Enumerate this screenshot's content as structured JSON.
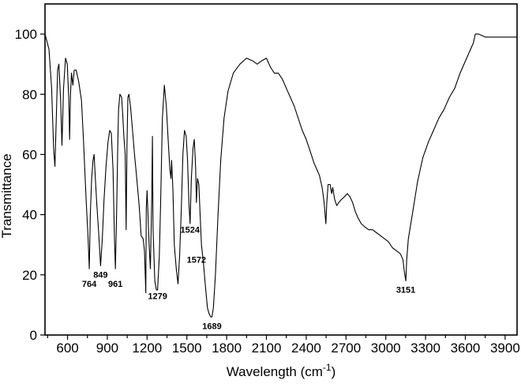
{
  "chart_data": {
    "type": "line",
    "xlabel": "Wavelength (cm",
    "xlabel_sup": "-1",
    "xlabel_end": ")",
    "ylabel": "Transmittance",
    "xlim": [
      430,
      3990
    ],
    "ylim": [
      0,
      110
    ],
    "xticks": [
      600,
      900,
      1200,
      1500,
      1800,
      2100,
      2400,
      2700,
      3000,
      3300,
      3600,
      3900
    ],
    "yticks": [
      0,
      20,
      40,
      60,
      80,
      100
    ],
    "grid": false,
    "legend": "none",
    "peak_labels": [
      {
        "text": "764",
        "x": 764,
        "y": 16
      },
      {
        "text": "849",
        "x": 849,
        "y": 19
      },
      {
        "text": "961",
        "x": 961,
        "y": 16
      },
      {
        "text": "1279",
        "x": 1279,
        "y": 12
      },
      {
        "text": "1524",
        "x": 1524,
        "y": 34
      },
      {
        "text": "1572",
        "x": 1572,
        "y": 24
      },
      {
        "text": "1689",
        "x": 1689,
        "y": 2
      },
      {
        "text": "3151",
        "x": 3151,
        "y": 14
      }
    ],
    "series": [
      {
        "points": [
          [
            430,
            100
          ],
          [
            460,
            95
          ],
          [
            480,
            82
          ],
          [
            495,
            62
          ],
          [
            505,
            56
          ],
          [
            515,
            72
          ],
          [
            525,
            88
          ],
          [
            535,
            90
          ],
          [
            548,
            78
          ],
          [
            558,
            63
          ],
          [
            570,
            82
          ],
          [
            585,
            92
          ],
          [
            598,
            90
          ],
          [
            610,
            78
          ],
          [
            616,
            65
          ],
          [
            622,
            80
          ],
          [
            630,
            87
          ],
          [
            640,
            83
          ],
          [
            650,
            88
          ],
          [
            665,
            88
          ],
          [
            685,
            84
          ],
          [
            705,
            78
          ],
          [
            720,
            65
          ],
          [
            740,
            45
          ],
          [
            755,
            32
          ],
          [
            764,
            22
          ],
          [
            772,
            40
          ],
          [
            782,
            52
          ],
          [
            792,
            58
          ],
          [
            800,
            60
          ],
          [
            810,
            52
          ],
          [
            820,
            44
          ],
          [
            835,
            34
          ],
          [
            849,
            23
          ],
          [
            862,
            32
          ],
          [
            875,
            45
          ],
          [
            890,
            56
          ],
          [
            905,
            64
          ],
          [
            918,
            68
          ],
          [
            930,
            67
          ],
          [
            943,
            55
          ],
          [
            953,
            33
          ],
          [
            961,
            22
          ],
          [
            970,
            40
          ],
          [
            978,
            62
          ],
          [
            985,
            75
          ],
          [
            995,
            80
          ],
          [
            1008,
            79
          ],
          [
            1015,
            74
          ],
          [
            1025,
            66
          ],
          [
            1035,
            60
          ],
          [
            1042,
            35
          ],
          [
            1048,
            62
          ],
          [
            1055,
            79
          ],
          [
            1063,
            80
          ],
          [
            1075,
            76
          ],
          [
            1090,
            68
          ],
          [
            1105,
            60
          ],
          [
            1120,
            53
          ],
          [
            1140,
            43
          ],
          [
            1155,
            33
          ],
          [
            1170,
            32
          ],
          [
            1180,
            28
          ],
          [
            1186,
            20
          ],
          [
            1190,
            14
          ],
          [
            1194,
            42
          ],
          [
            1200,
            48
          ],
          [
            1207,
            40
          ],
          [
            1215,
            30
          ],
          [
            1225,
            22
          ],
          [
            1235,
            45
          ],
          [
            1240,
            66
          ],
          [
            1245,
            35
          ],
          [
            1258,
            18
          ],
          [
            1270,
            15
          ],
          [
            1279,
            15
          ],
          [
            1292,
            26
          ],
          [
            1302,
            44
          ],
          [
            1315,
            72
          ],
          [
            1330,
            83
          ],
          [
            1345,
            76
          ],
          [
            1360,
            64
          ],
          [
            1372,
            55
          ],
          [
            1380,
            52
          ],
          [
            1385,
            58
          ],
          [
            1395,
            48
          ],
          [
            1405,
            30
          ],
          [
            1420,
            22
          ],
          [
            1433,
            17
          ],
          [
            1445,
            26
          ],
          [
            1458,
            42
          ],
          [
            1470,
            60
          ],
          [
            1482,
            68
          ],
          [
            1495,
            66
          ],
          [
            1505,
            58
          ],
          [
            1515,
            44
          ],
          [
            1524,
            37
          ],
          [
            1534,
            52
          ],
          [
            1546,
            62
          ],
          [
            1556,
            65
          ],
          [
            1566,
            56
          ],
          [
            1572,
            44
          ],
          [
            1580,
            52
          ],
          [
            1590,
            50
          ],
          [
            1600,
            40
          ],
          [
            1610,
            30
          ],
          [
            1625,
            24
          ],
          [
            1640,
            16
          ],
          [
            1655,
            9
          ],
          [
            1668,
            7
          ],
          [
            1680,
            6
          ],
          [
            1689,
            6
          ],
          [
            1700,
            9
          ],
          [
            1715,
            20
          ],
          [
            1735,
            40
          ],
          [
            1755,
            58
          ],
          [
            1780,
            72
          ],
          [
            1810,
            81
          ],
          [
            1850,
            87
          ],
          [
            1900,
            90
          ],
          [
            1950,
            92
          ],
          [
            2000,
            91
          ],
          [
            2030,
            90
          ],
          [
            2060,
            91
          ],
          [
            2100,
            92
          ],
          [
            2130,
            89
          ],
          [
            2160,
            87
          ],
          [
            2190,
            87
          ],
          [
            2220,
            85
          ],
          [
            2250,
            82
          ],
          [
            2280,
            79
          ],
          [
            2310,
            76
          ],
          [
            2340,
            72
          ],
          [
            2370,
            68
          ],
          [
            2400,
            65
          ],
          [
            2430,
            61
          ],
          [
            2460,
            57
          ],
          [
            2480,
            55
          ],
          [
            2500,
            53
          ],
          [
            2520,
            49
          ],
          [
            2535,
            44
          ],
          [
            2548,
            37
          ],
          [
            2555,
            44
          ],
          [
            2565,
            50
          ],
          [
            2580,
            50
          ],
          [
            2592,
            47
          ],
          [
            2600,
            49
          ],
          [
            2615,
            45
          ],
          [
            2630,
            43
          ],
          [
            2645,
            44
          ],
          [
            2665,
            45
          ],
          [
            2690,
            46
          ],
          [
            2710,
            47
          ],
          [
            2730,
            46
          ],
          [
            2750,
            44
          ],
          [
            2770,
            41
          ],
          [
            2790,
            39
          ],
          [
            2815,
            37
          ],
          [
            2840,
            36
          ],
          [
            2870,
            35
          ],
          [
            2900,
            35
          ],
          [
            2930,
            34
          ],
          [
            2960,
            33
          ],
          [
            2990,
            32
          ],
          [
            3020,
            31
          ],
          [
            3050,
            29
          ],
          [
            3080,
            28
          ],
          [
            3110,
            27
          ],
          [
            3130,
            25
          ],
          [
            3140,
            21
          ],
          [
            3151,
            18
          ],
          [
            3158,
            25
          ],
          [
            3170,
            32
          ],
          [
            3200,
            40
          ],
          [
            3240,
            51
          ],
          [
            3280,
            59
          ],
          [
            3320,
            64
          ],
          [
            3360,
            68
          ],
          [
            3400,
            72
          ],
          [
            3440,
            75
          ],
          [
            3480,
            79
          ],
          [
            3520,
            82
          ],
          [
            3560,
            87
          ],
          [
            3600,
            91
          ],
          [
            3640,
            95
          ],
          [
            3660,
            97
          ],
          [
            3675,
            100
          ],
          [
            3700,
            100
          ],
          [
            3750,
            99
          ],
          [
            3800,
            99
          ],
          [
            3850,
            99
          ],
          [
            3900,
            99
          ],
          [
            3950,
            99
          ],
          [
            3990,
            99
          ]
        ]
      }
    ]
  }
}
